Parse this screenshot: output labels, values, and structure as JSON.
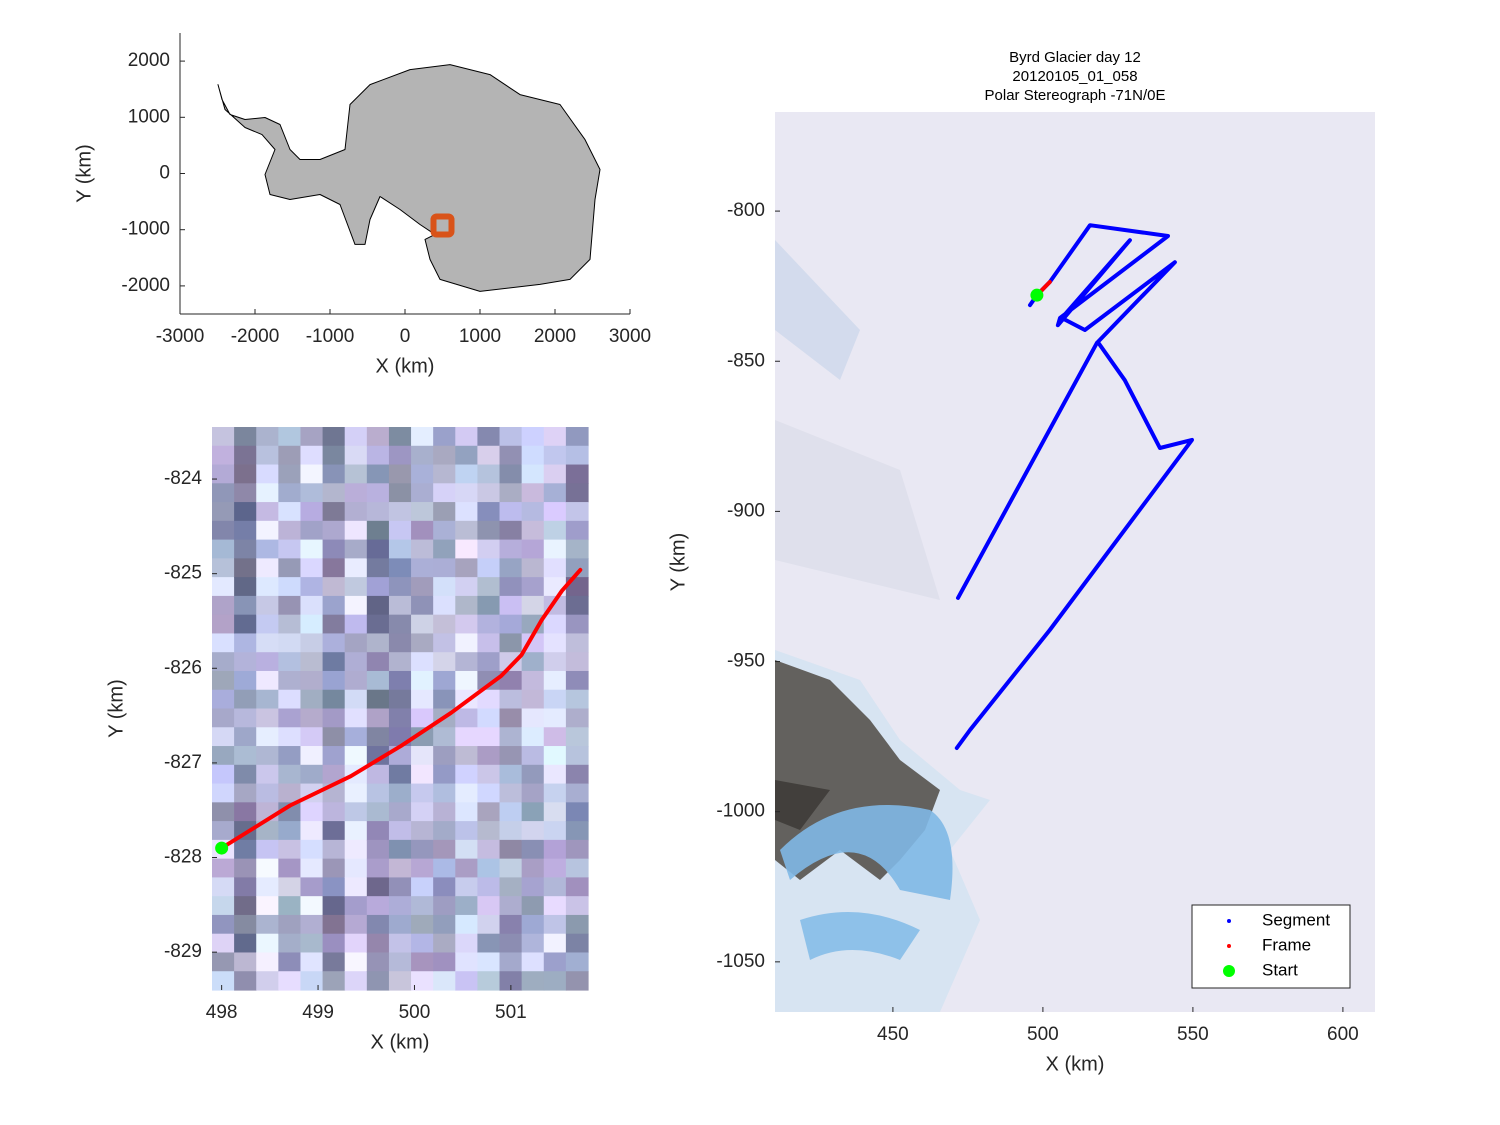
{
  "chart_data": [
    {
      "type": "line",
      "xlabel": "X (km)",
      "ylabel": "Y (km)",
      "xlim": [
        -3000,
        3000
      ],
      "ylim": [
        -2500,
        2500
      ],
      "xticks": [
        -3000,
        -2000,
        -1000,
        0,
        1000,
        2000,
        3000
      ],
      "yticks": [
        -2000,
        -1000,
        0,
        1000,
        2000
      ],
      "series": [
        {
          "color": "#000000",
          "fill": "#b4b4b4",
          "x": [
            -2493,
            -2440,
            -2333,
            -2133,
            -1867,
            -1667,
            -1533,
            -1400,
            -1133,
            -800,
            -733,
            -467,
            67,
            600,
            1133,
            1533,
            2067,
            2400,
            2600,
            2533,
            2467,
            2200,
            1800,
            1000,
            467,
            333,
            267,
            400,
            200,
            -67,
            -333,
            -467,
            -533,
            -667,
            -867,
            -1133,
            -1533,
            -1800,
            -1867,
            -1733,
            -1907,
            -2133,
            -2400
          ],
          "y": [
            1582,
            1316,
            1049,
            960,
            996,
            871,
            427,
            249,
            249,
            427,
            1227,
            1582,
            1849,
            1938,
            1760,
            1404,
            1227,
            604,
            71,
            -462,
            -1529,
            -1884,
            -1973,
            -2098,
            -1884,
            -1529,
            -1173,
            -1084,
            -907,
            -640,
            -409,
            -818,
            -1262,
            -1262,
            -551,
            -373,
            -462,
            -373,
            -18,
            427,
            693,
            818,
            1138
          ]
        },
        {
          "color": "#d95319",
          "marker": "square",
          "x": [
            500
          ],
          "y": [
            -925
          ]
        }
      ]
    },
    {
      "type": "line",
      "xlabel": "X (km)",
      "ylabel": "Y (km)",
      "xlim": [
        497.9,
        501.8
      ],
      "ylim": [
        -829.4,
        -823.45
      ],
      "xticks": [
        498,
        499,
        500,
        501
      ],
      "yticks": [
        -829,
        -828,
        -827,
        -826,
        -825,
        -824
      ],
      "series": [
        {
          "color": "#ff0000",
          "x": [
            498.0,
            498.71,
            499.34,
            499.86,
            500.38,
            500.9,
            501.11,
            501.32,
            501.53,
            501.72
          ],
          "y": [
            -827.9,
            -827.45,
            -827.14,
            -826.82,
            -826.47,
            -826.08,
            -825.86,
            -825.49,
            -825.18,
            -824.96
          ]
        },
        {
          "color": "#00ff00",
          "marker": "circle",
          "x": [
            498.0
          ],
          "y": [
            -827.9
          ]
        }
      ]
    },
    {
      "type": "line",
      "title": [
        "Byrd Glacier day 12",
        "20120105_01_058",
        "Polar Stereograph -71N/0E"
      ],
      "xlabel": "X (km)",
      "ylabel": "Y (km)",
      "xlim": [
        410.7,
        610.7
      ],
      "ylim": [
        -1066.7,
        -767
      ],
      "xticks": [
        450,
        500,
        550,
        600
      ],
      "yticks": [
        -1050,
        -1000,
        -950,
        -900,
        -850,
        -800
      ],
      "legend": "southeast",
      "series": [
        {
          "name": "Segment",
          "color": "#0000ff",
          "x": [
            495.7,
            498.0,
            502.3,
            515.7,
            541.7,
            505.7,
            505.0,
            529.0,
            506.3,
            514.0,
            544.0,
            518.3,
            527.3,
            539.0,
            549.7,
            502.3,
            475.7,
            471.3,
            null,
            471.7,
            518.0
          ],
          "y": [
            -831.3,
            -828.0,
            -823.6,
            -804.7,
            -808.3,
            -835.6,
            -838.0,
            -809.7,
            -835.6,
            -839.6,
            -817.0,
            -843.6,
            -856.3,
            -878.9,
            -876.2,
            -939.5,
            -972.8,
            -978.8,
            null,
            -928.8,
            -843.9
          ]
        },
        {
          "name": "Frame",
          "color": "#ff0000",
          "x": [
            498.0,
            502.3
          ],
          "y": [
            -828.0,
            -823.6
          ]
        },
        {
          "name": "Start",
          "color": "#00ff00",
          "marker": "circle",
          "x": [
            498.0
          ],
          "y": [
            -828.0
          ]
        }
      ]
    }
  ]
}
